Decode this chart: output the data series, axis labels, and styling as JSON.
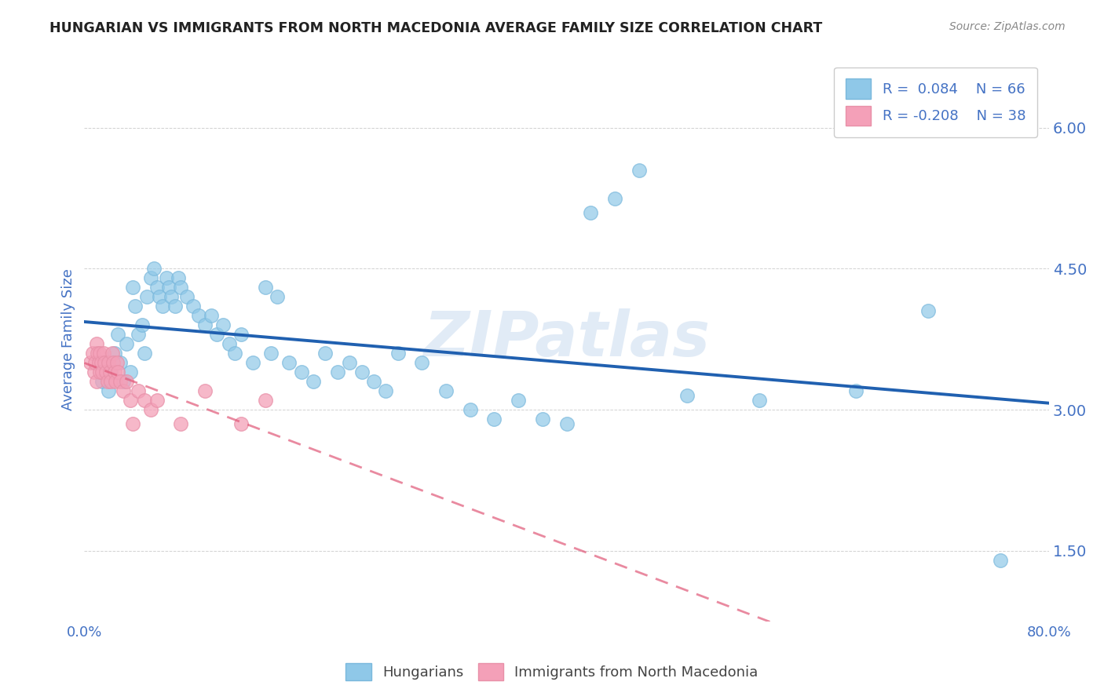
{
  "title": "HUNGARIAN VS IMMIGRANTS FROM NORTH MACEDONIA AVERAGE FAMILY SIZE CORRELATION CHART",
  "source": "Source: ZipAtlas.com",
  "ylabel": "Average Family Size",
  "xmin": 0.0,
  "xmax": 0.8,
  "ymin": 0.75,
  "ymax": 6.75,
  "yticks": [
    1.5,
    3.0,
    4.5,
    6.0
  ],
  "xtick_positions": [
    0.0,
    0.1,
    0.2,
    0.3,
    0.4,
    0.5,
    0.6,
    0.7,
    0.8
  ],
  "xtick_labels": [
    "0.0%",
    "",
    "",
    "",
    "",
    "",
    "",
    "",
    "80.0%"
  ],
  "legend_label1": "Hungarians",
  "legend_label2": "Immigrants from North Macedonia",
  "R1": "0.084",
  "N1": "66",
  "R2": "-0.208",
  "N2": "38",
  "color_blue": "#8fc8e8",
  "color_blue_edge": "#7ab8dc",
  "color_blue_line": "#2060b0",
  "color_pink": "#f4a0b8",
  "color_pink_edge": "#e890a8",
  "color_pink_line": "#e05878",
  "color_axis_text": "#4472c4",
  "color_text_dark": "#222222",
  "color_source": "#888888",
  "watermark": "ZIPatlas",
  "blue_dots_x": [
    0.015,
    0.018,
    0.02,
    0.022,
    0.025,
    0.028,
    0.03,
    0.032,
    0.035,
    0.038,
    0.04,
    0.042,
    0.045,
    0.048,
    0.05,
    0.052,
    0.055,
    0.058,
    0.06,
    0.062,
    0.065,
    0.068,
    0.07,
    0.072,
    0.075,
    0.078,
    0.08,
    0.085,
    0.09,
    0.095,
    0.1,
    0.105,
    0.11,
    0.115,
    0.12,
    0.125,
    0.13,
    0.14,
    0.15,
    0.155,
    0.16,
    0.17,
    0.18,
    0.19,
    0.2,
    0.21,
    0.22,
    0.23,
    0.24,
    0.25,
    0.26,
    0.28,
    0.3,
    0.32,
    0.34,
    0.36,
    0.38,
    0.4,
    0.42,
    0.44,
    0.46,
    0.5,
    0.56,
    0.64,
    0.7,
    0.76
  ],
  "blue_dots_y": [
    3.3,
    3.5,
    3.2,
    3.4,
    3.6,
    3.8,
    3.5,
    3.3,
    3.7,
    3.4,
    4.3,
    4.1,
    3.8,
    3.9,
    3.6,
    4.2,
    4.4,
    4.5,
    4.3,
    4.2,
    4.1,
    4.4,
    4.3,
    4.2,
    4.1,
    4.4,
    4.3,
    4.2,
    4.1,
    4.0,
    3.9,
    4.0,
    3.8,
    3.9,
    3.7,
    3.6,
    3.8,
    3.5,
    4.3,
    3.6,
    4.2,
    3.5,
    3.4,
    3.3,
    3.6,
    3.4,
    3.5,
    3.4,
    3.3,
    3.2,
    3.6,
    3.5,
    3.2,
    3.0,
    2.9,
    3.1,
    2.9,
    2.85,
    5.1,
    5.25,
    5.55,
    3.15,
    3.1,
    3.2,
    4.05,
    1.4
  ],
  "pink_dots_x": [
    0.005,
    0.007,
    0.008,
    0.009,
    0.01,
    0.01,
    0.011,
    0.012,
    0.013,
    0.013,
    0.014,
    0.015,
    0.016,
    0.017,
    0.018,
    0.019,
    0.02,
    0.021,
    0.022,
    0.023,
    0.024,
    0.025,
    0.026,
    0.027,
    0.028,
    0.03,
    0.032,
    0.035,
    0.038,
    0.04,
    0.045,
    0.05,
    0.055,
    0.06,
    0.08,
    0.1,
    0.13,
    0.15
  ],
  "pink_dots_y": [
    3.5,
    3.6,
    3.4,
    3.5,
    3.7,
    3.3,
    3.6,
    3.5,
    3.4,
    3.6,
    3.5,
    3.4,
    3.6,
    3.5,
    3.4,
    3.3,
    3.5,
    3.4,
    3.3,
    3.6,
    3.5,
    3.4,
    3.3,
    3.5,
    3.4,
    3.3,
    3.2,
    3.3,
    3.1,
    2.85,
    3.2,
    3.1,
    3.0,
    3.1,
    2.85,
    3.2,
    2.85,
    3.1
  ]
}
